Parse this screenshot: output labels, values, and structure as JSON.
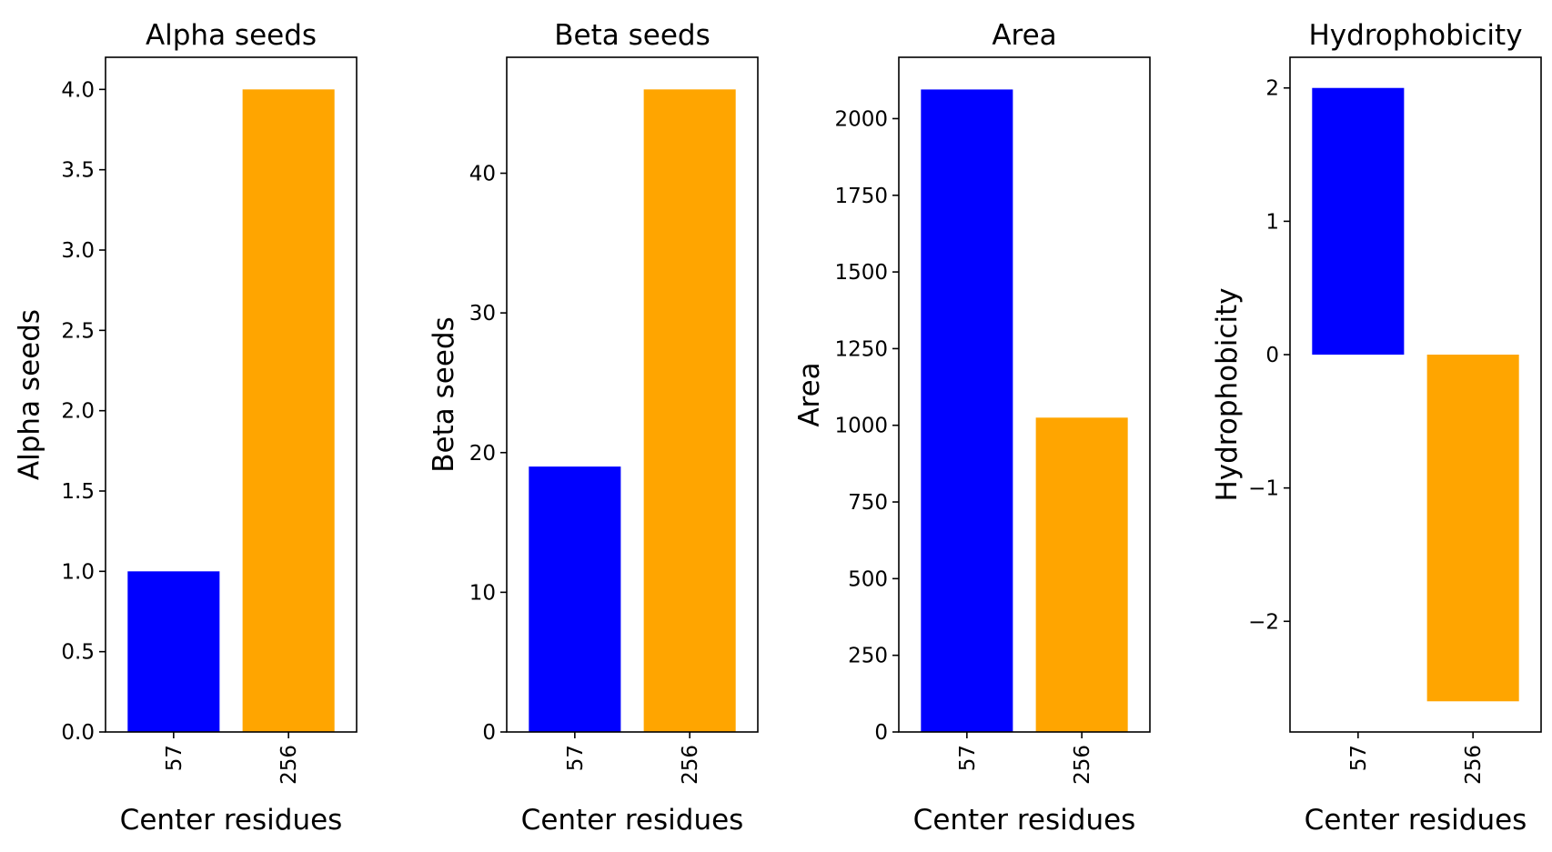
{
  "chart_data": [
    {
      "type": "bar",
      "title": "Alpha seeds",
      "xlabel": "Center residues",
      "ylabel": "Alpha seeds",
      "categories": [
        "57",
        "256"
      ],
      "values": [
        1,
        4
      ],
      "colors": [
        "#0000ff",
        "#ffa500"
      ],
      "ylim": [
        0,
        4.2
      ],
      "yticks": [
        0,
        0.5,
        1,
        1.5,
        2,
        2.5,
        3,
        3.5,
        4
      ],
      "ytick_labels": [
        "0.0",
        "0.5",
        "1.0",
        "1.5",
        "2.0",
        "2.5",
        "3.0",
        "3.5",
        "4.0"
      ]
    },
    {
      "type": "bar",
      "title": "Beta seeds",
      "xlabel": "Center residues",
      "ylabel": "Beta seeds",
      "categories": [
        "57",
        "256"
      ],
      "values": [
        19,
        46
      ],
      "colors": [
        "#0000ff",
        "#ffa500"
      ],
      "ylim": [
        0,
        48.3
      ],
      "yticks": [
        0,
        10,
        20,
        30,
        40
      ],
      "ytick_labels": [
        "0",
        "10",
        "20",
        "30",
        "40"
      ]
    },
    {
      "type": "bar",
      "title": "Area",
      "xlabel": "Center residues",
      "ylabel": "Area",
      "categories": [
        "57",
        "256"
      ],
      "values": [
        2095,
        1025
      ],
      "colors": [
        "#0000ff",
        "#ffa500"
      ],
      "ylim": [
        0,
        2200
      ],
      "yticks": [
        0,
        250,
        500,
        750,
        1000,
        1250,
        1500,
        1750,
        2000
      ],
      "ytick_labels": [
        "0",
        "250",
        "500",
        "750",
        "1000",
        "1250",
        "1500",
        "1750",
        "2000"
      ]
    },
    {
      "type": "bar",
      "title": "Hydrophobicity",
      "xlabel": "Center residues",
      "ylabel": "Hydrophobicity",
      "categories": [
        "57",
        "256"
      ],
      "values": [
        2.0,
        -2.6
      ],
      "colors": [
        "#0000ff",
        "#ffa500"
      ],
      "ylim": [
        -2.83,
        2.23
      ],
      "yticks": [
        -2,
        -1,
        0,
        1,
        2
      ],
      "ytick_labels": [
        "−2",
        "−1",
        "0",
        "1",
        "2"
      ]
    }
  ]
}
